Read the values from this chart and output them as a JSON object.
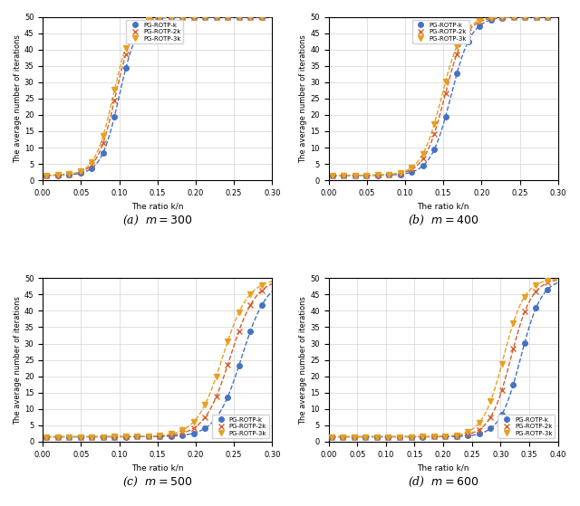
{
  "subplots": [
    {
      "label": "(a)  $m = 300$",
      "xlim": [
        0,
        0.3
      ],
      "ylim": [
        0,
        50
      ],
      "xticks": [
        0,
        0.05,
        0.1,
        0.15,
        0.2,
        0.25,
        0.3
      ],
      "transition_k": 0.1,
      "transition_2k": 0.095,
      "transition_3k": 0.092
    },
    {
      "label": "(b)  $m = 400$",
      "xlim": [
        0,
        0.3
      ],
      "ylim": [
        0,
        50
      ],
      "xticks": [
        0,
        0.05,
        0.1,
        0.15,
        0.2,
        0.25,
        0.3
      ],
      "transition_k": 0.16,
      "transition_2k": 0.152,
      "transition_3k": 0.148
    },
    {
      "label": "(c)  $m = 500$",
      "xlim": [
        0,
        0.3
      ],
      "ylim": [
        0,
        50
      ],
      "xticks": [
        0,
        0.05,
        0.1,
        0.15,
        0.2,
        0.25,
        0.3
      ],
      "transition_k": 0.26,
      "transition_2k": 0.245,
      "transition_3k": 0.235
    },
    {
      "label": "(d)  $m = 600$",
      "xlim": [
        0,
        0.4
      ],
      "ylim": [
        0,
        50
      ],
      "xticks": [
        0,
        0.05,
        0.1,
        0.15,
        0.2,
        0.25,
        0.3,
        0.35,
        0.4
      ],
      "transition_k": 0.335,
      "transition_2k": 0.318,
      "transition_3k": 0.305
    }
  ],
  "legend_labels": [
    "PG-ROTP-k",
    "PG-ROTP-2k",
    "PG-ROTP-3k"
  ],
  "colors": [
    "#4472C4",
    "#D46030",
    "#E8A020"
  ],
  "markers": [
    "o",
    "x",
    "v"
  ],
  "ylabel": "The average number of iterations",
  "xlabel": "The ratio k/n",
  "max_iter": 50,
  "steepness": 80
}
